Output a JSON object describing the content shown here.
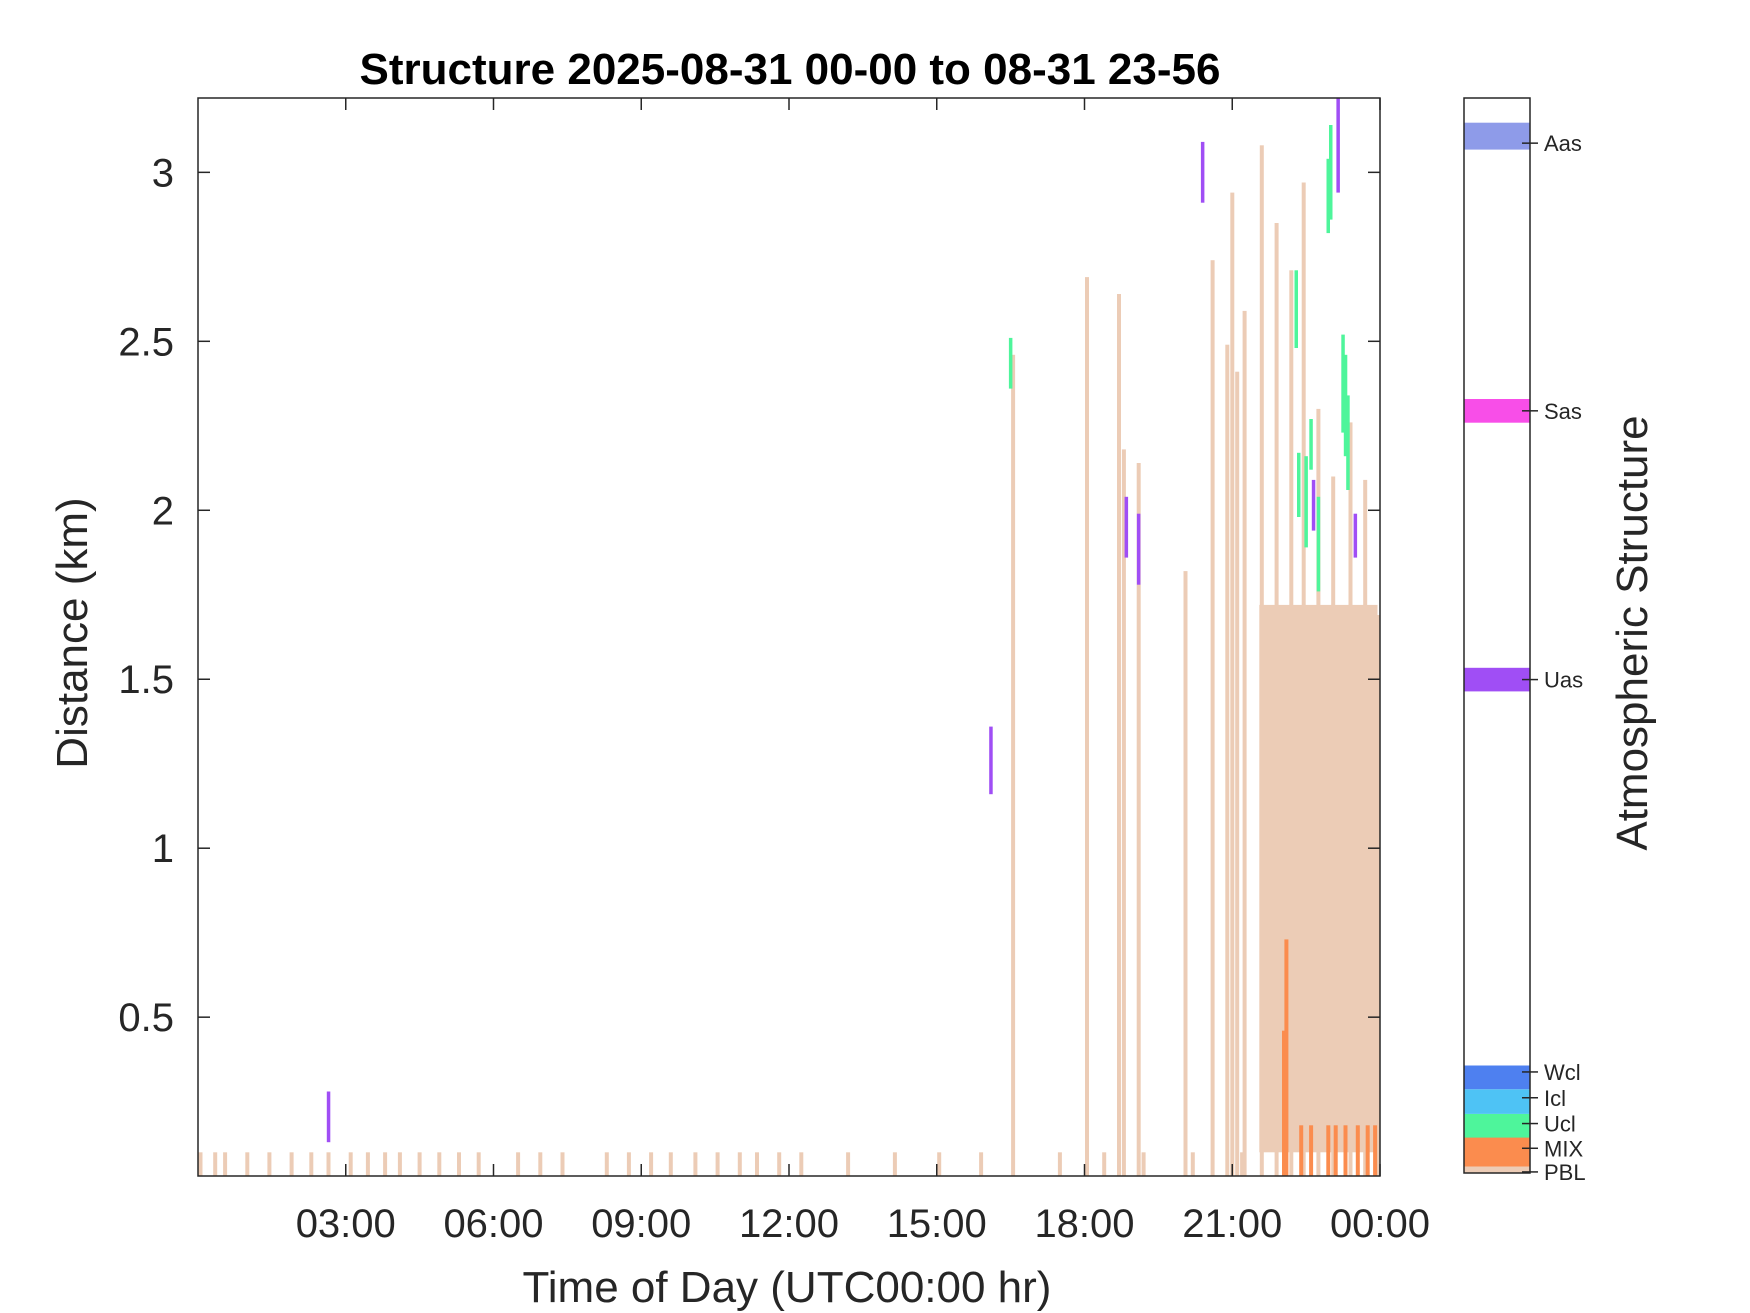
{
  "chart_data": {
    "type": "heatmap",
    "title": "Structure 2025-08-31 00-00 to 08-31 23-56",
    "xlabel": "Time of Day (UTC00:00 hr)",
    "ylabel": "Distance (km)",
    "xlim": [
      0,
      24
    ],
    "ylim": [
      0.03,
      3.22
    ],
    "x_ticks": [
      {
        "value": 3,
        "label": "03:00"
      },
      {
        "value": 6,
        "label": "06:00"
      },
      {
        "value": 9,
        "label": "09:00"
      },
      {
        "value": 12,
        "label": "12:00"
      },
      {
        "value": 15,
        "label": "15:00"
      },
      {
        "value": 18,
        "label": "18:00"
      },
      {
        "value": 21,
        "label": "21:00"
      },
      {
        "value": 24,
        "label": "00:00"
      }
    ],
    "y_ticks": [
      {
        "value": 0.5,
        "label": "0.5"
      },
      {
        "value": 1,
        "label": "1"
      },
      {
        "value": 1.5,
        "label": "1.5"
      },
      {
        "value": 2,
        "label": "2"
      },
      {
        "value": 2.5,
        "label": "2.5"
      },
      {
        "value": 3,
        "label": "3"
      }
    ],
    "colorbar": {
      "label": "Atmospheric Structure",
      "classes": [
        {
          "name": "PBL",
          "color": "#ecccb6"
        },
        {
          "name": "MIX",
          "color": "#fb8c4e"
        },
        {
          "name": "Ucl",
          "color": "#4ef59b"
        },
        {
          "name": "Icl",
          "color": "#4ec3f5"
        },
        {
          "name": "Wcl",
          "color": "#4e80f0"
        },
        {
          "name": "Uas",
          "color": "#a04ef5"
        },
        {
          "name": "Sas",
          "color": "#f84ee8"
        },
        {
          "name": "Aas",
          "color": "#8e9be9"
        }
      ]
    },
    "layers": [
      {
        "class": "PBL",
        "hours_utc": [
          0.05,
          0.35,
          0.55,
          1.0,
          1.45,
          1.9,
          2.3,
          2.65,
          3.1,
          3.45,
          3.8,
          4.1,
          4.5,
          4.9,
          5.3,
          5.7,
          6.5,
          6.95,
          7.4,
          8.3,
          8.75,
          9.2,
          9.6,
          10.1,
          10.55,
          11.0,
          11.35,
          11.8,
          12.25,
          13.2,
          14.15,
          15.05,
          15.9,
          17.5,
          18.4,
          19.2,
          20.2,
          21.2
        ],
        "distance_km": [
          0.03,
          0.1
        ]
      },
      {
        "class": "PBL",
        "hours_utc": [
          16.55
        ],
        "distance_km": [
          0.03,
          2.46
        ]
      },
      {
        "class": "PBL",
        "hours_utc": [
          18.05
        ],
        "distance_km": [
          0.03,
          2.69
        ]
      },
      {
        "class": "PBL",
        "hours_utc": [
          18.7
        ],
        "distance_km": [
          0.03,
          2.64
        ]
      },
      {
        "class": "PBL",
        "hours_utc": [
          18.8
        ],
        "distance_km": [
          0.03,
          2.18
        ]
      },
      {
        "class": "PBL",
        "hours_utc": [
          19.1
        ],
        "distance_km": [
          0.03,
          2.14
        ]
      },
      {
        "class": "PBL",
        "hours_utc": [
          20.05
        ],
        "distance_km": [
          0.03,
          1.82
        ]
      },
      {
        "class": "PBL",
        "hours_utc": [
          20.6
        ],
        "distance_km": [
          0.03,
          2.74
        ]
      },
      {
        "class": "PBL",
        "hours_utc": [
          20.9
        ],
        "distance_km": [
          0.03,
          2.49
        ]
      },
      {
        "class": "PBL",
        "hours_utc": [
          21.0
        ],
        "distance_km": [
          0.03,
          2.94
        ]
      },
      {
        "class": "PBL",
        "hours_utc": [
          21.1
        ],
        "distance_km": [
          0.03,
          2.41
        ]
      },
      {
        "class": "PBL",
        "hours_utc": [
          21.25
        ],
        "distance_km": [
          0.03,
          2.59
        ]
      },
      {
        "class": "PBL",
        "hours_utc": [
          21.6
        ],
        "distance_km": [
          0.03,
          3.08
        ]
      },
      {
        "class": "PBL",
        "hours_utc": [
          21.9
        ],
        "distance_km": [
          0.03,
          2.85
        ]
      },
      {
        "class": "PBL",
        "hours_utc": [
          22.2
        ],
        "distance_km": [
          0.03,
          2.71
        ]
      },
      {
        "class": "PBL",
        "hours_utc": [
          22.45
        ],
        "distance_km": [
          0.03,
          2.97
        ]
      },
      {
        "class": "PBL",
        "hours_utc": [
          22.75
        ],
        "distance_km": [
          0.03,
          2.3
        ]
      },
      {
        "class": "PBL",
        "hours_utc": [
          23.05
        ],
        "distance_km": [
          0.03,
          2.1
        ]
      },
      {
        "class": "PBL",
        "hours_utc": [
          23.4
        ],
        "distance_km": [
          0.03,
          2.26
        ]
      },
      {
        "class": "PBL",
        "hours_utc": [
          23.7
        ],
        "distance_km": [
          0.03,
          2.09
        ]
      },
      {
        "class": "PBL",
        "hours_utc": [
          23.95
        ],
        "distance_km": [
          0.03,
          1.69
        ]
      },
      {
        "class": "MIX",
        "hours_utc": [
          22.4,
          22.6,
          22.95,
          23.1,
          23.3,
          23.55,
          23.75,
          23.9
        ],
        "distance_km": [
          0.03,
          0.18
        ]
      },
      {
        "class": "MIX",
        "hours_utc": [
          22.05
        ],
        "distance_km": [
          0.03,
          0.46
        ]
      },
      {
        "class": "MIX",
        "hours_utc": [
          22.1
        ],
        "distance_km": [
          0.03,
          0.73
        ]
      },
      {
        "class": "Ucl",
        "hours_utc": [
          16.5
        ],
        "distance_km": [
          2.36,
          2.51
        ]
      },
      {
        "class": "Ucl",
        "hours_utc": [
          22.3
        ],
        "distance_km": [
          2.48,
          2.71
        ]
      },
      {
        "class": "Ucl",
        "hours_utc": [
          22.35
        ],
        "distance_km": [
          1.98,
          2.17
        ]
      },
      {
        "class": "Ucl",
        "hours_utc": [
          22.5
        ],
        "distance_km": [
          1.89,
          2.16
        ]
      },
      {
        "class": "Ucl",
        "hours_utc": [
          22.6
        ],
        "distance_km": [
          2.12,
          2.27
        ]
      },
      {
        "class": "Ucl",
        "hours_utc": [
          22.75
        ],
        "distance_km": [
          1.76,
          2.04
        ]
      },
      {
        "class": "Ucl",
        "hours_utc": [
          22.95
        ],
        "distance_km": [
          2.82,
          3.04
        ]
      },
      {
        "class": "Ucl",
        "hours_utc": [
          23.0
        ],
        "distance_km": [
          2.86,
          3.14
        ]
      },
      {
        "class": "Ucl",
        "hours_utc": [
          23.25
        ],
        "distance_km": [
          2.23,
          2.52
        ]
      },
      {
        "class": "Ucl",
        "hours_utc": [
          23.3
        ],
        "distance_km": [
          2.16,
          2.46
        ]
      },
      {
        "class": "Ucl",
        "hours_utc": [
          23.35
        ],
        "distance_km": [
          2.06,
          2.34
        ]
      },
      {
        "class": "Uas",
        "hours_utc": [
          2.65
        ],
        "distance_km": [
          0.13,
          0.28
        ]
      },
      {
        "class": "Uas",
        "hours_utc": [
          16.1
        ],
        "distance_km": [
          1.16,
          1.36
        ]
      },
      {
        "class": "Uas",
        "hours_utc": [
          18.85
        ],
        "distance_km": [
          1.86,
          2.04
        ]
      },
      {
        "class": "Uas",
        "hours_utc": [
          19.1
        ],
        "distance_km": [
          1.78,
          1.99
        ]
      },
      {
        "class": "Uas",
        "hours_utc": [
          20.4
        ],
        "distance_km": [
          2.91,
          3.09
        ]
      },
      {
        "class": "Uas",
        "hours_utc": [
          22.65
        ],
        "distance_km": [
          1.94,
          2.09
        ]
      },
      {
        "class": "Uas",
        "hours_utc": [
          23.15
        ],
        "distance_km": [
          2.94,
          3.22
        ]
      },
      {
        "class": "Uas",
        "hours_utc": [
          23.5
        ],
        "distance_km": [
          1.86,
          1.99
        ]
      }
    ],
    "grid": false,
    "legend": "colorbar-right"
  }
}
